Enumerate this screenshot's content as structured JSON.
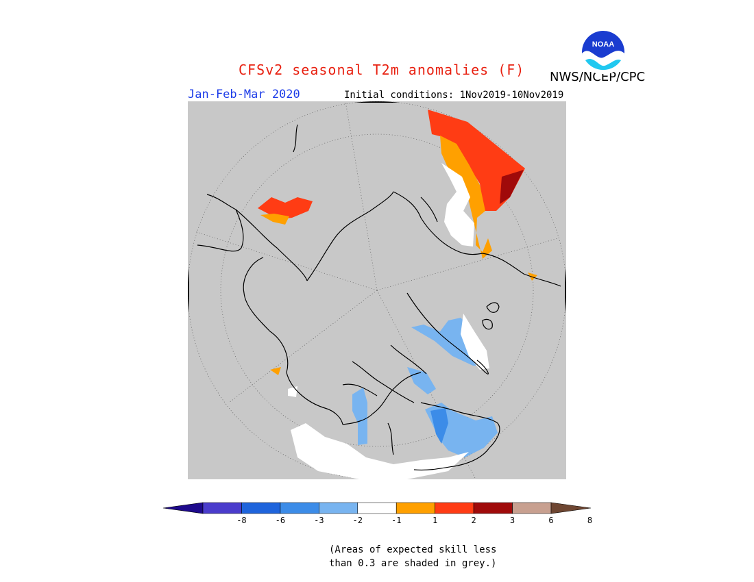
{
  "header": {
    "title": "CFSv2 seasonal T2m anomalies (F)",
    "agency": "NWS/NCEP/CPC",
    "season": "Jan-Feb-Mar 2020",
    "initial_conditions": "Initial conditions: 1Nov2019-10Nov2019",
    "logo_text": "NOAA"
  },
  "colors": {
    "title": "#e82010",
    "season": "#1c3ce8",
    "skill_grey": "#c8c8c8",
    "map_background": "#ffffff",
    "frame": "#000000"
  },
  "legend": {
    "bins": [
      {
        "color": "#1e0a8c",
        "label": "-8"
      },
      {
        "color": "#4a3ccc",
        "label": "-6"
      },
      {
        "color": "#1e64dc",
        "label": "-3"
      },
      {
        "color": "#3c8ce8",
        "label": "-2"
      },
      {
        "color": "#78b4f0",
        "label": "-1"
      },
      {
        "color": "#ffffff",
        "label": "1"
      },
      {
        "color": "#ffa000",
        "label": "2"
      },
      {
        "color": "#ff3c14",
        "label": "3"
      },
      {
        "color": "#a00a0a",
        "label": "6"
      },
      {
        "color": "#c8a090",
        "label": "8"
      },
      {
        "color": "#6e4632",
        "label": ""
      }
    ],
    "tick_labels": [
      "-8",
      "-6",
      "-3",
      "-2",
      "-1",
      "1",
      "2",
      "3",
      "6",
      "8"
    ]
  },
  "note": {
    "line1": "(Areas of expected skill less",
    "line2": "than 0.3 are shaded in grey.)"
  }
}
